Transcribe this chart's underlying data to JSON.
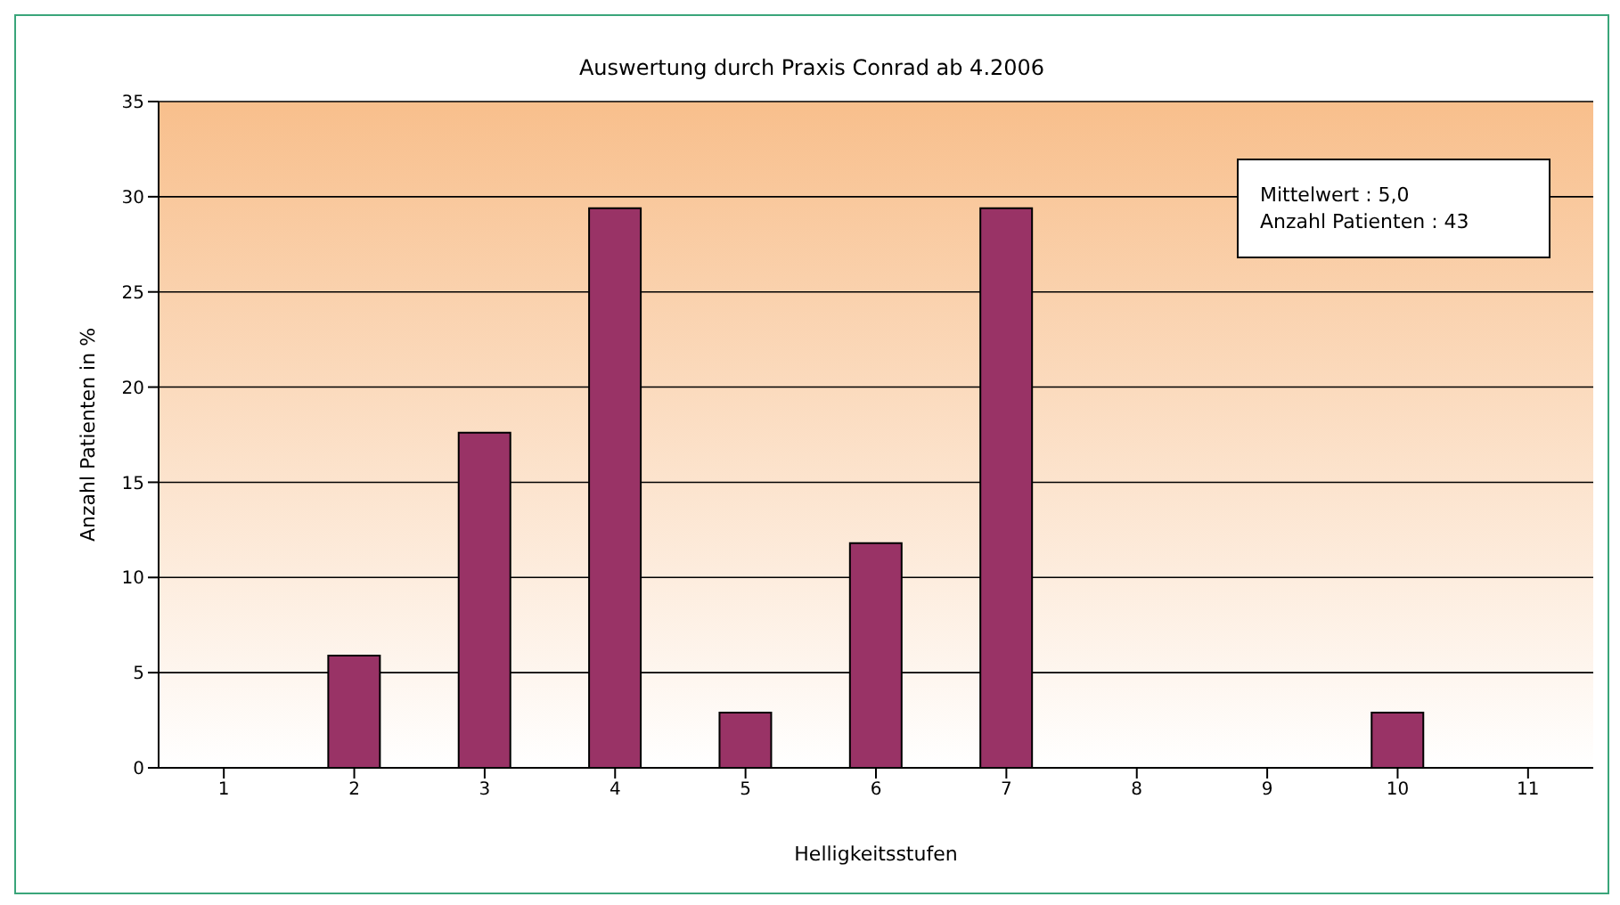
{
  "chart_data": {
    "type": "bar",
    "title": "Auswertung durch Praxis Conrad ab 4.2006",
    "xlabel": "Helligkeitsstufen",
    "ylabel": "Anzahl Patienten in %",
    "categories": [
      "1",
      "2",
      "3",
      "4",
      "5",
      "6",
      "7",
      "8",
      "9",
      "10",
      "11"
    ],
    "values": [
      0,
      5.9,
      17.6,
      29.4,
      2.9,
      11.8,
      29.4,
      0,
      0,
      2.9,
      0
    ],
    "color": "#993366",
    "ylim": [
      0,
      35
    ],
    "yticks": [
      0,
      5,
      10,
      15,
      20,
      25,
      30,
      35
    ],
    "grid": "y",
    "annotations": [
      "Mittelwert : 5,0",
      "Anzahl Patienten : 43"
    ]
  }
}
